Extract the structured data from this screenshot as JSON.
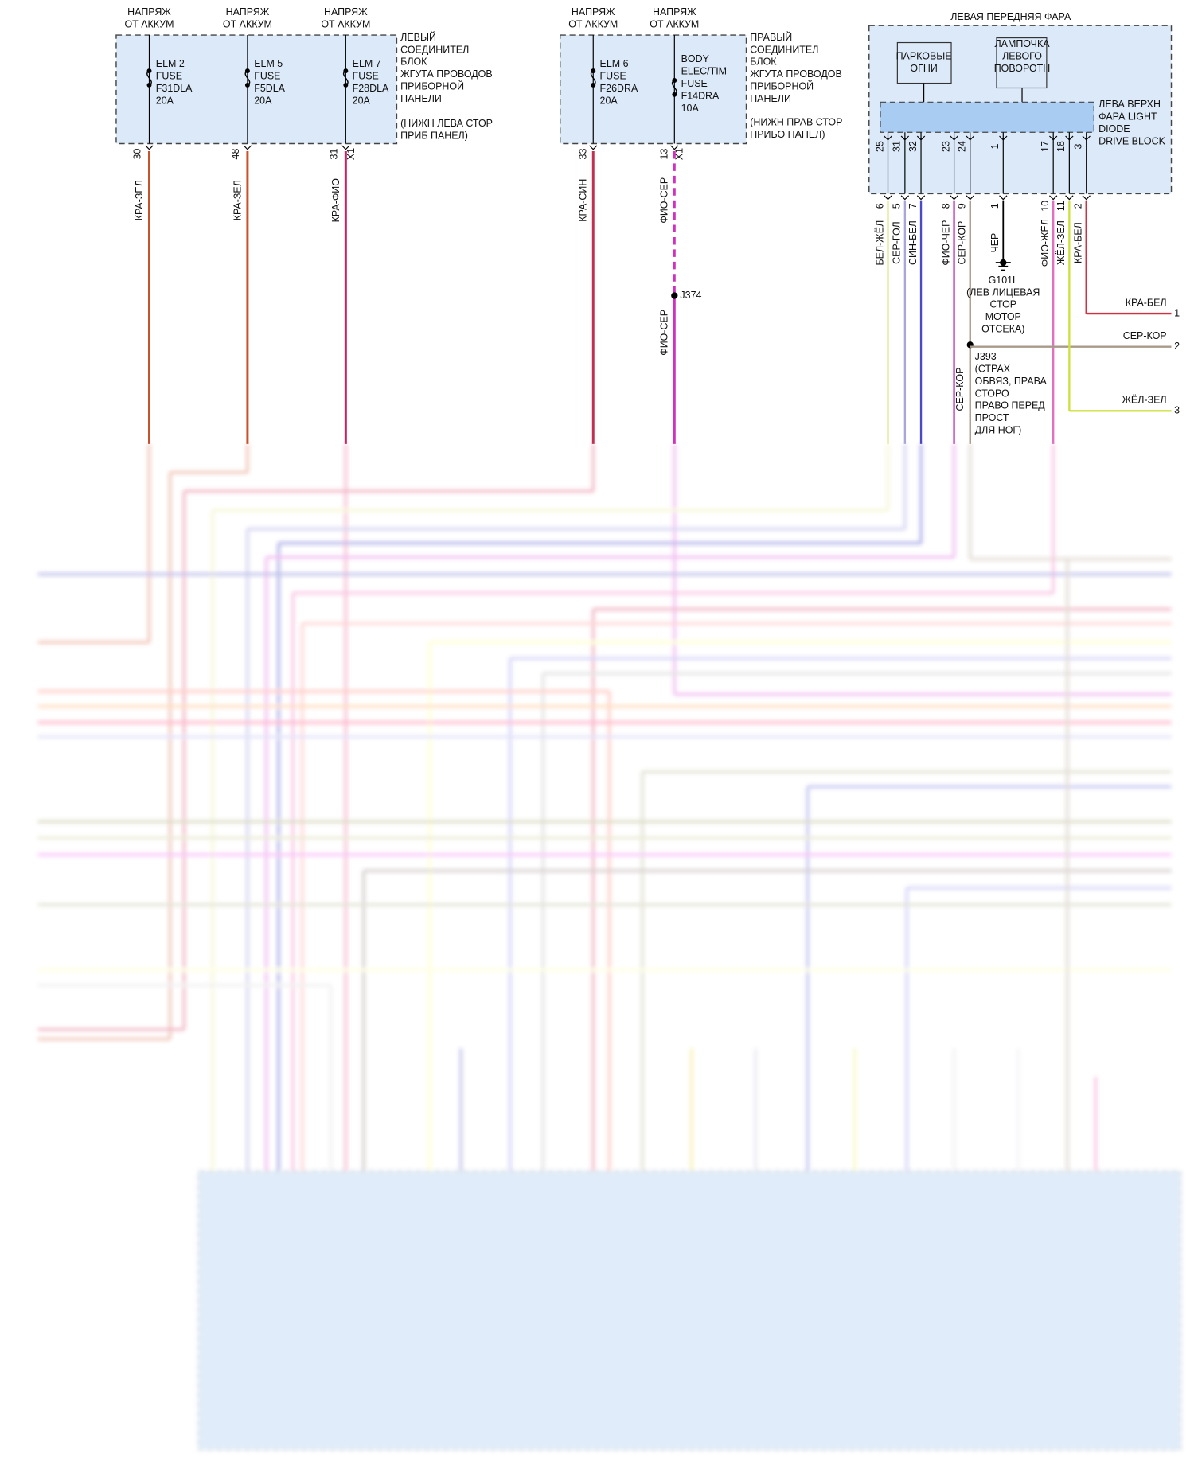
{
  "left_block": {
    "supplies": [
      [
        "НАПРЯЖ",
        "ОТ АККУМ"
      ],
      [
        "НАПРЯЖ",
        "ОТ АККУМ"
      ],
      [
        "НАПРЯЖ",
        "ОТ АККУМ"
      ]
    ],
    "fuses": [
      [
        "ELM 2",
        "FUSE",
        "F31DLA",
        "20A"
      ],
      [
        "ELM 5",
        "FUSE",
        "F5DLA",
        "20A"
      ],
      [
        "ELM 7",
        "FUSE",
        "F28DLA",
        "20A"
      ]
    ],
    "name": [
      "ЛЕВЫЙ",
      "СОЕДИНИТЕЛ",
      "БЛОК",
      "ЖГУТА ПРОВОДОВ",
      "ПРИБОРНОЙ",
      "ПАНЕЛИ"
    ],
    "location": [
      "(НИЖН ЛЕВА СТОР",
      "ПРИБ ПАНЕЛ)"
    ],
    "pins": [
      "30",
      "48",
      "31"
    ],
    "connector": "X1",
    "wires": [
      "КРА-ЗЕЛ",
      "КРА-ЗЕЛ",
      "КРА-ФИО"
    ]
  },
  "right_block": {
    "supplies": [
      [
        "НАПРЯЖ",
        "ОТ АККУМ"
      ],
      [
        "НАПРЯЖ",
        "ОТ АККУМ"
      ]
    ],
    "fuses": [
      [
        "ELM 6",
        "FUSE",
        "F26DRA",
        "20A"
      ],
      [
        "BODY",
        "ELEC/TIM",
        "FUSE",
        "F14DRA",
        "10A"
      ]
    ],
    "name": [
      "ПРАВЫЙ",
      "СОЕДИНИТЕЛ",
      "БЛОК",
      "ЖГУТА ПРОВОДОВ",
      "ПРИБОРНОЙ",
      "ПАНЕЛИ"
    ],
    "location": [
      "(НИЖН ПРАВ СТОР",
      "ПРИБО ПАНЕЛ)"
    ],
    "pins": [
      "33",
      "13"
    ],
    "connector": "X1",
    "wires": [
      "КРА-СИН",
      "ФИО-СЕР"
    ],
    "splice": "J374",
    "splice_wire": "ФИО-СЕР"
  },
  "headlamp": {
    "title": "ЛЕВАЯ ПЕРЕДНЯЯ ФАРА",
    "parking": [
      "ПАРКОВЫЕ",
      "ОГНИ"
    ],
    "turn": [
      "ЛАМПОЧКА",
      "ЛЕВОГО",
      "ПОВОРОТН"
    ],
    "module": [
      "ЛЕВА ВЕРХН",
      "ФАРА LIGHT",
      "DIODE",
      "DRIVE BLOCK"
    ],
    "inner_pins": [
      "25",
      "31",
      "32",
      "23",
      "24",
      "1",
      "17",
      "18",
      "3"
    ],
    "outer_pins": [
      "6",
      "5",
      "7",
      "8",
      "9",
      "1",
      "10",
      "11",
      "2"
    ],
    "wires": [
      "БЕЛ-ЖЁЛ",
      "СЕР-ГОЛ",
      "СИН-БЕЛ",
      "ФИО-ЧЕР",
      "СЕР-КОР",
      "ЧЕР",
      "ФИО-ЖЁЛ",
      "ЖЁЛ-ЗЕЛ",
      "КРА-БЕЛ"
    ],
    "ground": [
      "G101L",
      "(ЛЕВ ЛИЦЕВАЯ",
      "СТОР",
      "МОТОР",
      "ОТСЕКА)"
    ],
    "splice": [
      "J393",
      "(СТРАХ",
      "ОБВЯЗ, ПРАВА",
      "СТОРО",
      "ПРАВО ПЕРЕД",
      "ПРОСТ",
      "ДЛЯ НОГ)"
    ],
    "splice_wire": "СЕР-КОР",
    "outputs": [
      {
        "wire": "КРА-БЕЛ",
        "pin": "1"
      },
      {
        "wire": "СЕР-КОР",
        "pin": "2"
      },
      {
        "wire": "ЖЁЛ-ЗЕЛ",
        "pin": "3"
      }
    ]
  }
}
